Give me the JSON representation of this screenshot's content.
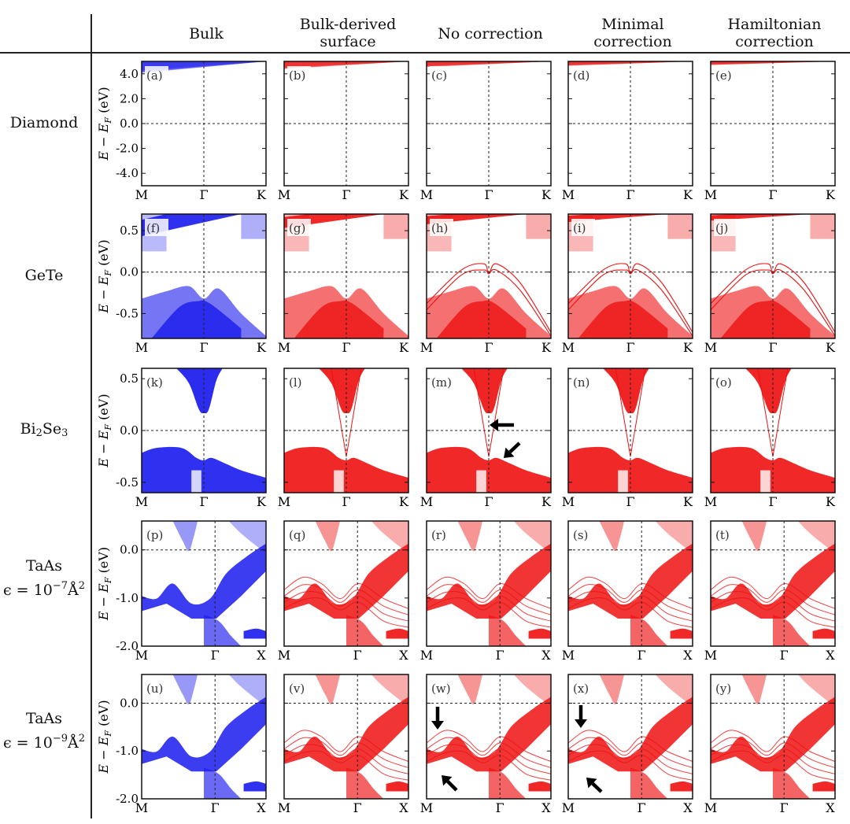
{
  "columns": [
    "Bulk",
    "Bulk-derived\nsurface",
    "No correction",
    "Minimal\ncorrection",
    "Hamiltonian\ncorrection"
  ],
  "rows": [
    {
      "name": "Diamond",
      "line2": ""
    },
    {
      "name": "GeTe",
      "line2": ""
    },
    {
      "name_main": "Bi",
      "name_sub1": "2",
      "name_mid": "Se",
      "name_sub2": "3"
    },
    {
      "name": "TaAs",
      "eps_prefix": "ϵ = 10",
      "eps_exp": "−7",
      "eps_unit": "Å",
      "eps_unit_exp": "2"
    },
    {
      "name": "TaAs",
      "eps_prefix": "ϵ = 10",
      "eps_exp": "−9",
      "eps_unit": "Å",
      "eps_unit_exp": "2"
    }
  ],
  "ylabel": "E − E",
  "ylabel_sub": "F",
  "ylabel_unit": " (eV)",
  "colors": {
    "bulk": "#1a1aee",
    "surface": "#ee1111",
    "frame": "#111111",
    "arrow": "#000000"
  },
  "chart_data": [
    {
      "type": "band-structure",
      "row": "Diamond",
      "ylim": [
        -5,
        5
      ],
      "yticks": [
        "4.0",
        "2.0",
        "0.0",
        "-2.0",
        "-4.0"
      ],
      "ytick_values": [
        4,
        2,
        0,
        -2,
        -4
      ],
      "kpoints": [
        "M",
        "Γ",
        "K"
      ],
      "panels": [
        "(a)",
        "(b)",
        "(c)",
        "(d)",
        "(e)"
      ]
    },
    {
      "type": "band-structure",
      "row": "GeTe",
      "ylim": [
        -0.8,
        0.7
      ],
      "yticks": [
        "0.5",
        "0.0",
        "-0.5"
      ],
      "ytick_values": [
        0.5,
        0,
        -0.5
      ],
      "kpoints": [
        "M",
        "Γ",
        "K"
      ],
      "panels": [
        "(f)",
        "(g)",
        "(h)",
        "(i)",
        "(j)"
      ]
    },
    {
      "type": "band-structure",
      "row": "Bi2Se3",
      "ylim": [
        -0.6,
        0.6
      ],
      "yticks": [
        "0.5",
        "0.0",
        "-0.5"
      ],
      "ytick_values": [
        0.5,
        0,
        -0.5
      ],
      "kpoints": [
        "M",
        "Γ",
        "K"
      ],
      "panels": [
        "(k)",
        "(l)",
        "(m)",
        "(n)",
        "(o)"
      ]
    },
    {
      "type": "band-structure",
      "row": "TaAs 1e-7",
      "ylim": [
        -2.0,
        0.6
      ],
      "yticks": [
        "0.0",
        "-1.0",
        "-2.0"
      ],
      "ytick_values": [
        0,
        -1,
        -2
      ],
      "kpoints": [
        "M",
        "Γ",
        "X"
      ],
      "panels": [
        "(p)",
        "(q)",
        "(r)",
        "(s)",
        "(t)"
      ]
    },
    {
      "type": "band-structure",
      "row": "TaAs 1e-9",
      "ylim": [
        -2.0,
        0.6
      ],
      "yticks": [
        "0.0",
        "-1.0",
        "-2.0"
      ],
      "ytick_values": [
        0,
        -1,
        -2
      ],
      "kpoints": [
        "M",
        "Γ",
        "X"
      ],
      "panels": [
        "(u)",
        "(v)",
        "(w)",
        "(x)",
        "(y)"
      ]
    }
  ]
}
